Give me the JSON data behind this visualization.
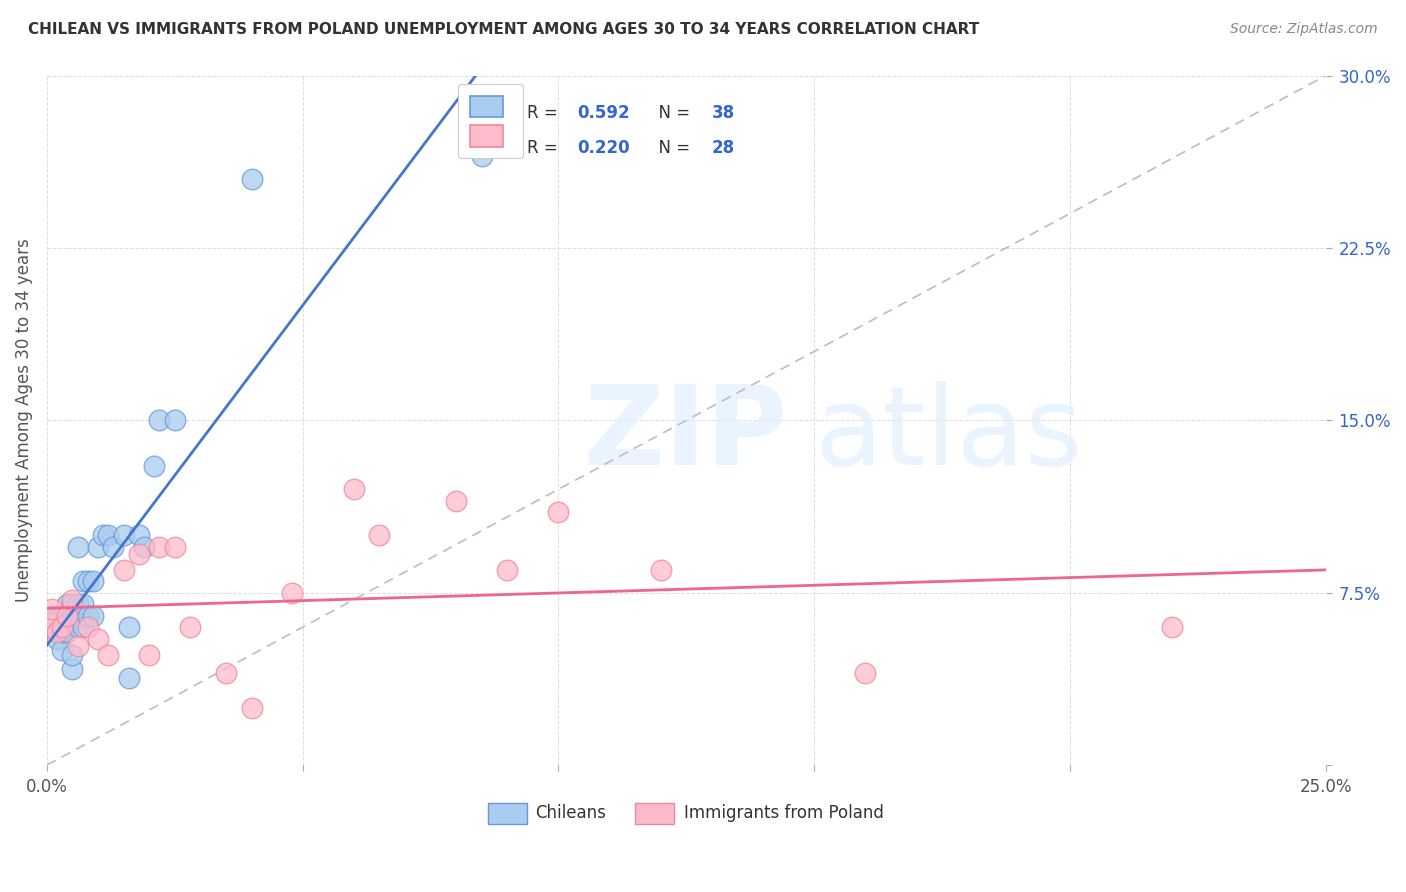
{
  "title": "CHILEAN VS IMMIGRANTS FROM POLAND UNEMPLOYMENT AMONG AGES 30 TO 34 YEARS CORRELATION CHART",
  "source": "Source: ZipAtlas.com",
  "ylabel": "Unemployment Among Ages 30 to 34 years",
  "xlim": [
    0.0,
    0.25
  ],
  "ylim": [
    0.0,
    0.3
  ],
  "xticks": [
    0.0,
    0.05,
    0.1,
    0.15,
    0.2,
    0.25
  ],
  "yticks": [
    0.0,
    0.075,
    0.15,
    0.225,
    0.3
  ],
  "color_chilean_fill": "#aaccee",
  "color_chilean_edge": "#6699dd",
  "color_poland_fill": "#ffbbcc",
  "color_poland_edge": "#ee8899",
  "color_line_chilean": "#4477cc",
  "color_line_poland": "#ee6688",
  "color_ref_line": "#bbbbcc",
  "background_color": "#ffffff",
  "legend_color_blue": "#3366cc",
  "legend_color_dark": "#333333",
  "chilean_x": [
    0.001,
    0.001,
    0.002,
    0.002,
    0.003,
    0.003,
    0.003,
    0.004,
    0.004,
    0.004,
    0.005,
    0.005,
    0.005,
    0.005,
    0.006,
    0.006,
    0.006,
    0.007,
    0.007,
    0.007,
    0.008,
    0.008,
    0.009,
    0.009,
    0.01,
    0.011,
    0.012,
    0.013,
    0.015,
    0.016,
    0.016,
    0.018,
    0.019,
    0.021,
    0.022,
    0.025,
    0.04,
    0.085
  ],
  "chilean_y": [
    0.06,
    0.065,
    0.055,
    0.065,
    0.05,
    0.058,
    0.065,
    0.058,
    0.062,
    0.07,
    0.042,
    0.048,
    0.065,
    0.07,
    0.06,
    0.07,
    0.095,
    0.06,
    0.07,
    0.08,
    0.065,
    0.08,
    0.065,
    0.08,
    0.095,
    0.1,
    0.1,
    0.095,
    0.1,
    0.038,
    0.06,
    0.1,
    0.095,
    0.13,
    0.15,
    0.15,
    0.255,
    0.265
  ],
  "poland_x": [
    0.001,
    0.001,
    0.001,
    0.002,
    0.003,
    0.004,
    0.005,
    0.006,
    0.008,
    0.01,
    0.012,
    0.015,
    0.018,
    0.02,
    0.022,
    0.025,
    0.028,
    0.035,
    0.04,
    0.048,
    0.06,
    0.065,
    0.08,
    0.09,
    0.1,
    0.12,
    0.16,
    0.22
  ],
  "poland_y": [
    0.06,
    0.062,
    0.068,
    0.058,
    0.06,
    0.065,
    0.072,
    0.052,
    0.06,
    0.055,
    0.048,
    0.085,
    0.092,
    0.048,
    0.095,
    0.095,
    0.06,
    0.04,
    0.025,
    0.075,
    0.12,
    0.1,
    0.115,
    0.085,
    0.11,
    0.085,
    0.04,
    0.06
  ]
}
